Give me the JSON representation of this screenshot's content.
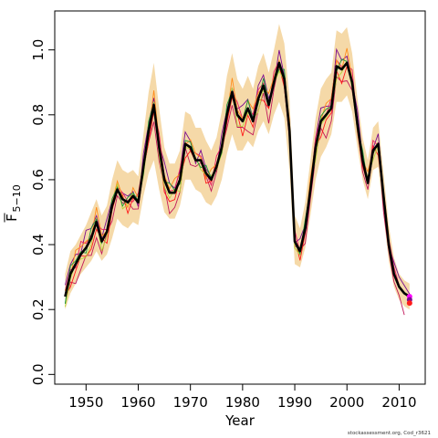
{
  "chart_data": {
    "type": "line",
    "xlabel": "Year",
    "ylabel_main": "F",
    "ylabel_sub": "5−10",
    "xlim": [
      1944,
      2015
    ],
    "ylim": [
      -0.03,
      1.12
    ],
    "x_ticks": [
      1950,
      1960,
      1970,
      1980,
      1990,
      2000,
      2010
    ],
    "y_ticks": [
      0.0,
      0.2,
      0.4,
      0.6,
      0.8,
      1.0
    ],
    "y_tick_labels": [
      "0.0",
      "0.2",
      "0.4",
      "0.6",
      "0.8",
      "1.0"
    ],
    "colors": {
      "band": "#f5d9a8",
      "main": "#000000"
    },
    "years": [
      1946,
      1947,
      1948,
      1949,
      1950,
      1951,
      1952,
      1953,
      1954,
      1955,
      1956,
      1957,
      1958,
      1959,
      1960,
      1961,
      1962,
      1963,
      1964,
      1965,
      1966,
      1967,
      1968,
      1969,
      1970,
      1971,
      1972,
      1973,
      1974,
      1975,
      1976,
      1977,
      1978,
      1979,
      1980,
      1981,
      1982,
      1983,
      1984,
      1985,
      1986,
      1987,
      1988,
      1989,
      1990,
      1991,
      1992,
      1993,
      1994,
      1995,
      1996,
      1997,
      1998,
      1999,
      2000,
      2001,
      2002,
      2003,
      2004,
      2005,
      2006,
      2007,
      2008,
      2009,
      2010,
      2011,
      2012
    ],
    "main": [
      0.24,
      0.31,
      0.34,
      0.37,
      0.39,
      0.42,
      0.47,
      0.41,
      0.44,
      0.52,
      0.57,
      0.54,
      0.53,
      0.55,
      0.53,
      0.64,
      0.75,
      0.83,
      0.7,
      0.6,
      0.56,
      0.56,
      0.6,
      0.71,
      0.7,
      0.66,
      0.66,
      0.62,
      0.6,
      0.64,
      0.7,
      0.8,
      0.87,
      0.8,
      0.78,
      0.82,
      0.78,
      0.85,
      0.89,
      0.83,
      0.9,
      0.96,
      0.91,
      0.75,
      0.41,
      0.38,
      0.45,
      0.57,
      0.7,
      0.78,
      0.8,
      0.82,
      0.95,
      0.94,
      0.96,
      0.9,
      0.77,
      0.66,
      0.59,
      0.69,
      0.71,
      0.55,
      0.4,
      0.31,
      0.27,
      0.25,
      0.24
    ],
    "band_lower": [
      0.2,
      0.25,
      0.28,
      0.31,
      0.33,
      0.35,
      0.38,
      0.35,
      0.37,
      0.42,
      0.48,
      0.46,
      0.45,
      0.47,
      0.46,
      0.55,
      0.62,
      0.66,
      0.57,
      0.5,
      0.48,
      0.48,
      0.52,
      0.6,
      0.6,
      0.57,
      0.56,
      0.53,
      0.52,
      0.55,
      0.6,
      0.68,
      0.74,
      0.69,
      0.69,
      0.72,
      0.7,
      0.75,
      0.78,
      0.74,
      0.8,
      0.84,
      0.79,
      0.63,
      0.34,
      0.33,
      0.39,
      0.49,
      0.6,
      0.67,
      0.7,
      0.74,
      0.84,
      0.84,
      0.86,
      0.81,
      0.7,
      0.6,
      0.54,
      0.63,
      0.64,
      0.49,
      0.35,
      0.27,
      0.23,
      0.21,
      0.2
    ],
    "band_upper": [
      0.31,
      0.38,
      0.4,
      0.43,
      0.46,
      0.5,
      0.54,
      0.49,
      0.52,
      0.6,
      0.66,
      0.63,
      0.62,
      0.63,
      0.61,
      0.74,
      0.87,
      0.96,
      0.82,
      0.7,
      0.65,
      0.65,
      0.69,
      0.81,
      0.8,
      0.76,
      0.76,
      0.72,
      0.69,
      0.73,
      0.81,
      0.92,
      0.99,
      0.91,
      0.88,
      0.92,
      0.88,
      0.95,
      0.99,
      0.93,
      1.0,
      1.08,
      1.02,
      0.85,
      0.49,
      0.45,
      0.53,
      0.66,
      0.79,
      0.88,
      0.91,
      0.93,
      1.06,
      1.05,
      1.07,
      0.99,
      0.85,
      0.73,
      0.66,
      0.76,
      0.78,
      0.62,
      0.46,
      0.36,
      0.31,
      0.29,
      0.28
    ],
    "retro_series": [
      {
        "color": "#7a0c8f",
        "start": 1946,
        "end": 2012,
        "offset": 0.02,
        "phase": 0.3
      },
      {
        "color": "#c2185b",
        "start": 1946,
        "end": 2011,
        "offset": -0.03,
        "phase": 1.1
      },
      {
        "color": "#e91e63",
        "start": 1946,
        "end": 2010,
        "offset": 0.01,
        "phase": 2.0
      },
      {
        "color": "#ff1a1a",
        "start": 1946,
        "end": 2009,
        "offset": -0.015,
        "phase": 2.7
      },
      {
        "color": "#ff8c1a",
        "start": 1946,
        "end": 2008,
        "offset": 0.015,
        "phase": 3.5
      },
      {
        "color": "#b8d43a",
        "start": 1946,
        "end": 2007,
        "offset": -0.01,
        "phase": 4.2
      },
      {
        "color": "#1a9a3a",
        "start": 1946,
        "end": 2006,
        "offset": 0.005,
        "phase": 5.0
      }
    ],
    "end_points": [
      {
        "x": 2012,
        "y": 0.24,
        "color": "#ff00ff"
      },
      {
        "x": 2012,
        "y": 0.23,
        "color": "#7a0c8f"
      },
      {
        "x": 2012,
        "y": 0.22,
        "color": "#ff1a1a"
      }
    ]
  },
  "footer": "stockassessment.org, Cod_r3621"
}
